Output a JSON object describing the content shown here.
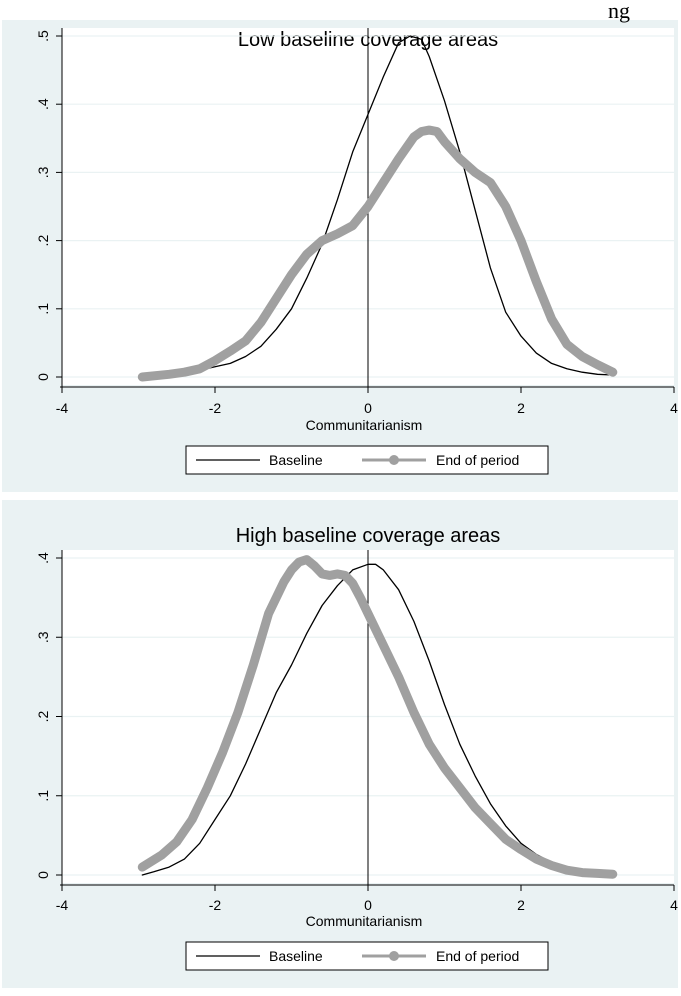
{
  "header_fragment": "ng",
  "colors": {
    "panel_background": "#eaf2f3",
    "baseline_line": "#000000",
    "end_line": "#a0a0a0"
  },
  "chart_data": [
    {
      "type": "line",
      "title": "Low baseline coverage areas",
      "xlabel": "Communitarianism",
      "ylabel": "",
      "xlim": [
        -4,
        4
      ],
      "ylim": [
        0,
        0.5
      ],
      "xticks": [
        -4,
        -2,
        0,
        2,
        4
      ],
      "xtick_labels": [
        "-4",
        "-2",
        "0",
        "2",
        "4"
      ],
      "yticks": [
        0,
        0.1,
        0.2,
        0.3,
        0.4,
        0.5
      ],
      "ytick_labels": [
        "0",
        ".1",
        ".2",
        ".3",
        ".4",
        ".5"
      ],
      "grid": true,
      "reference_line_x": 0,
      "legend_position": "bottom",
      "series": [
        {
          "name": "Baseline",
          "color": "#000000",
          "x": [
            -2.2,
            -2.0,
            -1.8,
            -1.6,
            -1.4,
            -1.2,
            -1.0,
            -0.8,
            -0.6,
            -0.4,
            -0.2,
            0.0,
            0.2,
            0.4,
            0.55,
            0.7,
            0.8,
            1.0,
            1.2,
            1.4,
            1.6,
            1.8,
            2.0,
            2.2,
            2.4,
            2.6,
            2.8,
            3.0,
            3.2
          ],
          "y": [
            0.01,
            0.015,
            0.02,
            0.03,
            0.045,
            0.07,
            0.1,
            0.145,
            0.195,
            0.26,
            0.33,
            0.385,
            0.44,
            0.49,
            0.5,
            0.495,
            0.47,
            0.405,
            0.33,
            0.245,
            0.16,
            0.095,
            0.06,
            0.035,
            0.02,
            0.012,
            0.007,
            0.004,
            0.003
          ]
        },
        {
          "name": "End of period",
          "color": "#a0a0a0",
          "x": [
            -2.95,
            -2.6,
            -2.4,
            -2.2,
            -2.0,
            -1.8,
            -1.6,
            -1.4,
            -1.2,
            -1.0,
            -0.8,
            -0.6,
            -0.4,
            -0.2,
            0.0,
            0.2,
            0.4,
            0.6,
            0.7,
            0.8,
            0.9,
            1.0,
            1.2,
            1.4,
            1.6,
            1.8,
            2.0,
            2.2,
            2.4,
            2.6,
            2.8,
            3.0,
            3.2
          ],
          "y": [
            0.0,
            0.004,
            0.007,
            0.012,
            0.024,
            0.038,
            0.053,
            0.08,
            0.115,
            0.15,
            0.18,
            0.2,
            0.21,
            0.222,
            0.25,
            0.285,
            0.32,
            0.352,
            0.36,
            0.362,
            0.36,
            0.345,
            0.32,
            0.3,
            0.285,
            0.25,
            0.2,
            0.14,
            0.085,
            0.048,
            0.03,
            0.018,
            0.007
          ]
        }
      ]
    },
    {
      "type": "line",
      "title": "High baseline coverage areas",
      "xlabel": "Communitarianism",
      "ylabel": "",
      "xlim": [
        -4,
        4
      ],
      "ylim": [
        0,
        0.4
      ],
      "xticks": [
        -4,
        -2,
        0,
        2,
        4
      ],
      "xtick_labels": [
        "-4",
        "-2",
        "0",
        "2",
        "4"
      ],
      "yticks": [
        0,
        0.1,
        0.2,
        0.3,
        0.4
      ],
      "ytick_labels": [
        "0",
        ".1",
        ".2",
        ".3",
        ".4"
      ],
      "grid": true,
      "reference_line_x": 0,
      "legend_position": "bottom",
      "series": [
        {
          "name": "Baseline",
          "color": "#000000",
          "x": [
            -2.95,
            -2.8,
            -2.6,
            -2.4,
            -2.2,
            -2.0,
            -1.8,
            -1.6,
            -1.4,
            -1.2,
            -1.0,
            -0.8,
            -0.6,
            -0.4,
            -0.2,
            0.0,
            0.1,
            0.2,
            0.4,
            0.6,
            0.8,
            1.0,
            1.2,
            1.4,
            1.6,
            1.8,
            2.0,
            2.2,
            2.4,
            2.6,
            2.8
          ],
          "y": [
            0.0,
            0.004,
            0.01,
            0.02,
            0.04,
            0.07,
            0.1,
            0.14,
            0.185,
            0.23,
            0.265,
            0.305,
            0.34,
            0.365,
            0.385,
            0.392,
            0.392,
            0.385,
            0.36,
            0.32,
            0.27,
            0.215,
            0.165,
            0.125,
            0.09,
            0.062,
            0.04,
            0.026,
            0.016,
            0.008,
            0.004
          ]
        },
        {
          "name": "End of period",
          "color": "#a0a0a0",
          "x": [
            -2.95,
            -2.7,
            -2.5,
            -2.3,
            -2.1,
            -1.9,
            -1.7,
            -1.5,
            -1.3,
            -1.1,
            -1.0,
            -0.9,
            -0.8,
            -0.7,
            -0.6,
            -0.5,
            -0.4,
            -0.3,
            -0.2,
            -0.1,
            0.0,
            0.2,
            0.4,
            0.6,
            0.8,
            1.0,
            1.2,
            1.4,
            1.6,
            1.8,
            2.0,
            2.2,
            2.4,
            2.6,
            2.8,
            3.0,
            3.2
          ],
          "y": [
            0.01,
            0.025,
            0.042,
            0.07,
            0.11,
            0.155,
            0.205,
            0.265,
            0.33,
            0.37,
            0.385,
            0.395,
            0.398,
            0.39,
            0.38,
            0.378,
            0.38,
            0.378,
            0.368,
            0.35,
            0.33,
            0.29,
            0.25,
            0.205,
            0.165,
            0.135,
            0.11,
            0.085,
            0.065,
            0.045,
            0.032,
            0.02,
            0.012,
            0.006,
            0.003,
            0.002,
            0.001
          ]
        }
      ]
    }
  ]
}
